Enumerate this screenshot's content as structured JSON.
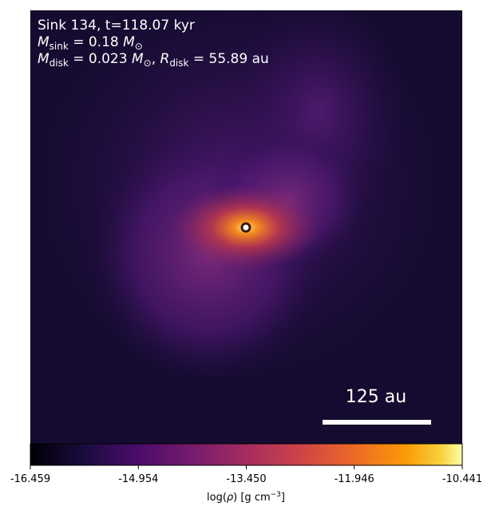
{
  "chart_data": {
    "type": "image",
    "annotations": [
      [
        "Sink 134, t=118.07 kyr"
      ],
      [
        "M",
        "sink",
        " = 0.18 ",
        "M",
        "⊙"
      ],
      [
        "M",
        "disk",
        " = 0.023 ",
        "M",
        "⊙",
        ", ",
        "R",
        "disk",
        " = 55.89 au"
      ]
    ],
    "scale_bar_label": "125 au",
    "colorbar": {
      "label": [
        "log(",
        "ρ",
        ") [g cm",
        "−3",
        "]"
      ],
      "lim": [
        -16.459,
        -10.441
      ],
      "ticks": [
        -16.459,
        -14.954,
        {
          "value": -13.45,
          "label": "-13.450"
        },
        -11.946,
        -10.441
      ],
      "cmap": "inferno"
    }
  }
}
